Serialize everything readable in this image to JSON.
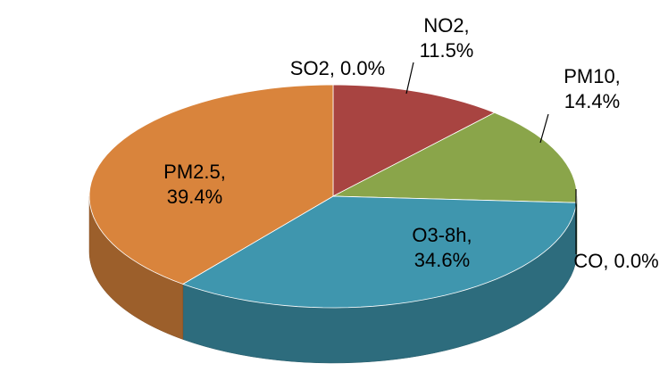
{
  "chart_data": {
    "type": "pie3d",
    "values": [
      0.0,
      11.5,
      14.4,
      0.0,
      34.6,
      39.4
    ],
    "value_labels": [
      "SO2, 0.0%",
      "NO2, 11.5%",
      "PM10, 14.4%",
      "CO, 0.0%",
      "O3-8h, 34.6%",
      "PM2.5, 39.4%"
    ],
    "colors": [
      "#4f81bd",
      "#a84441",
      "#8aa54a",
      "#7e62a1",
      "#3f96ae",
      "#d9843c"
    ]
  }
}
